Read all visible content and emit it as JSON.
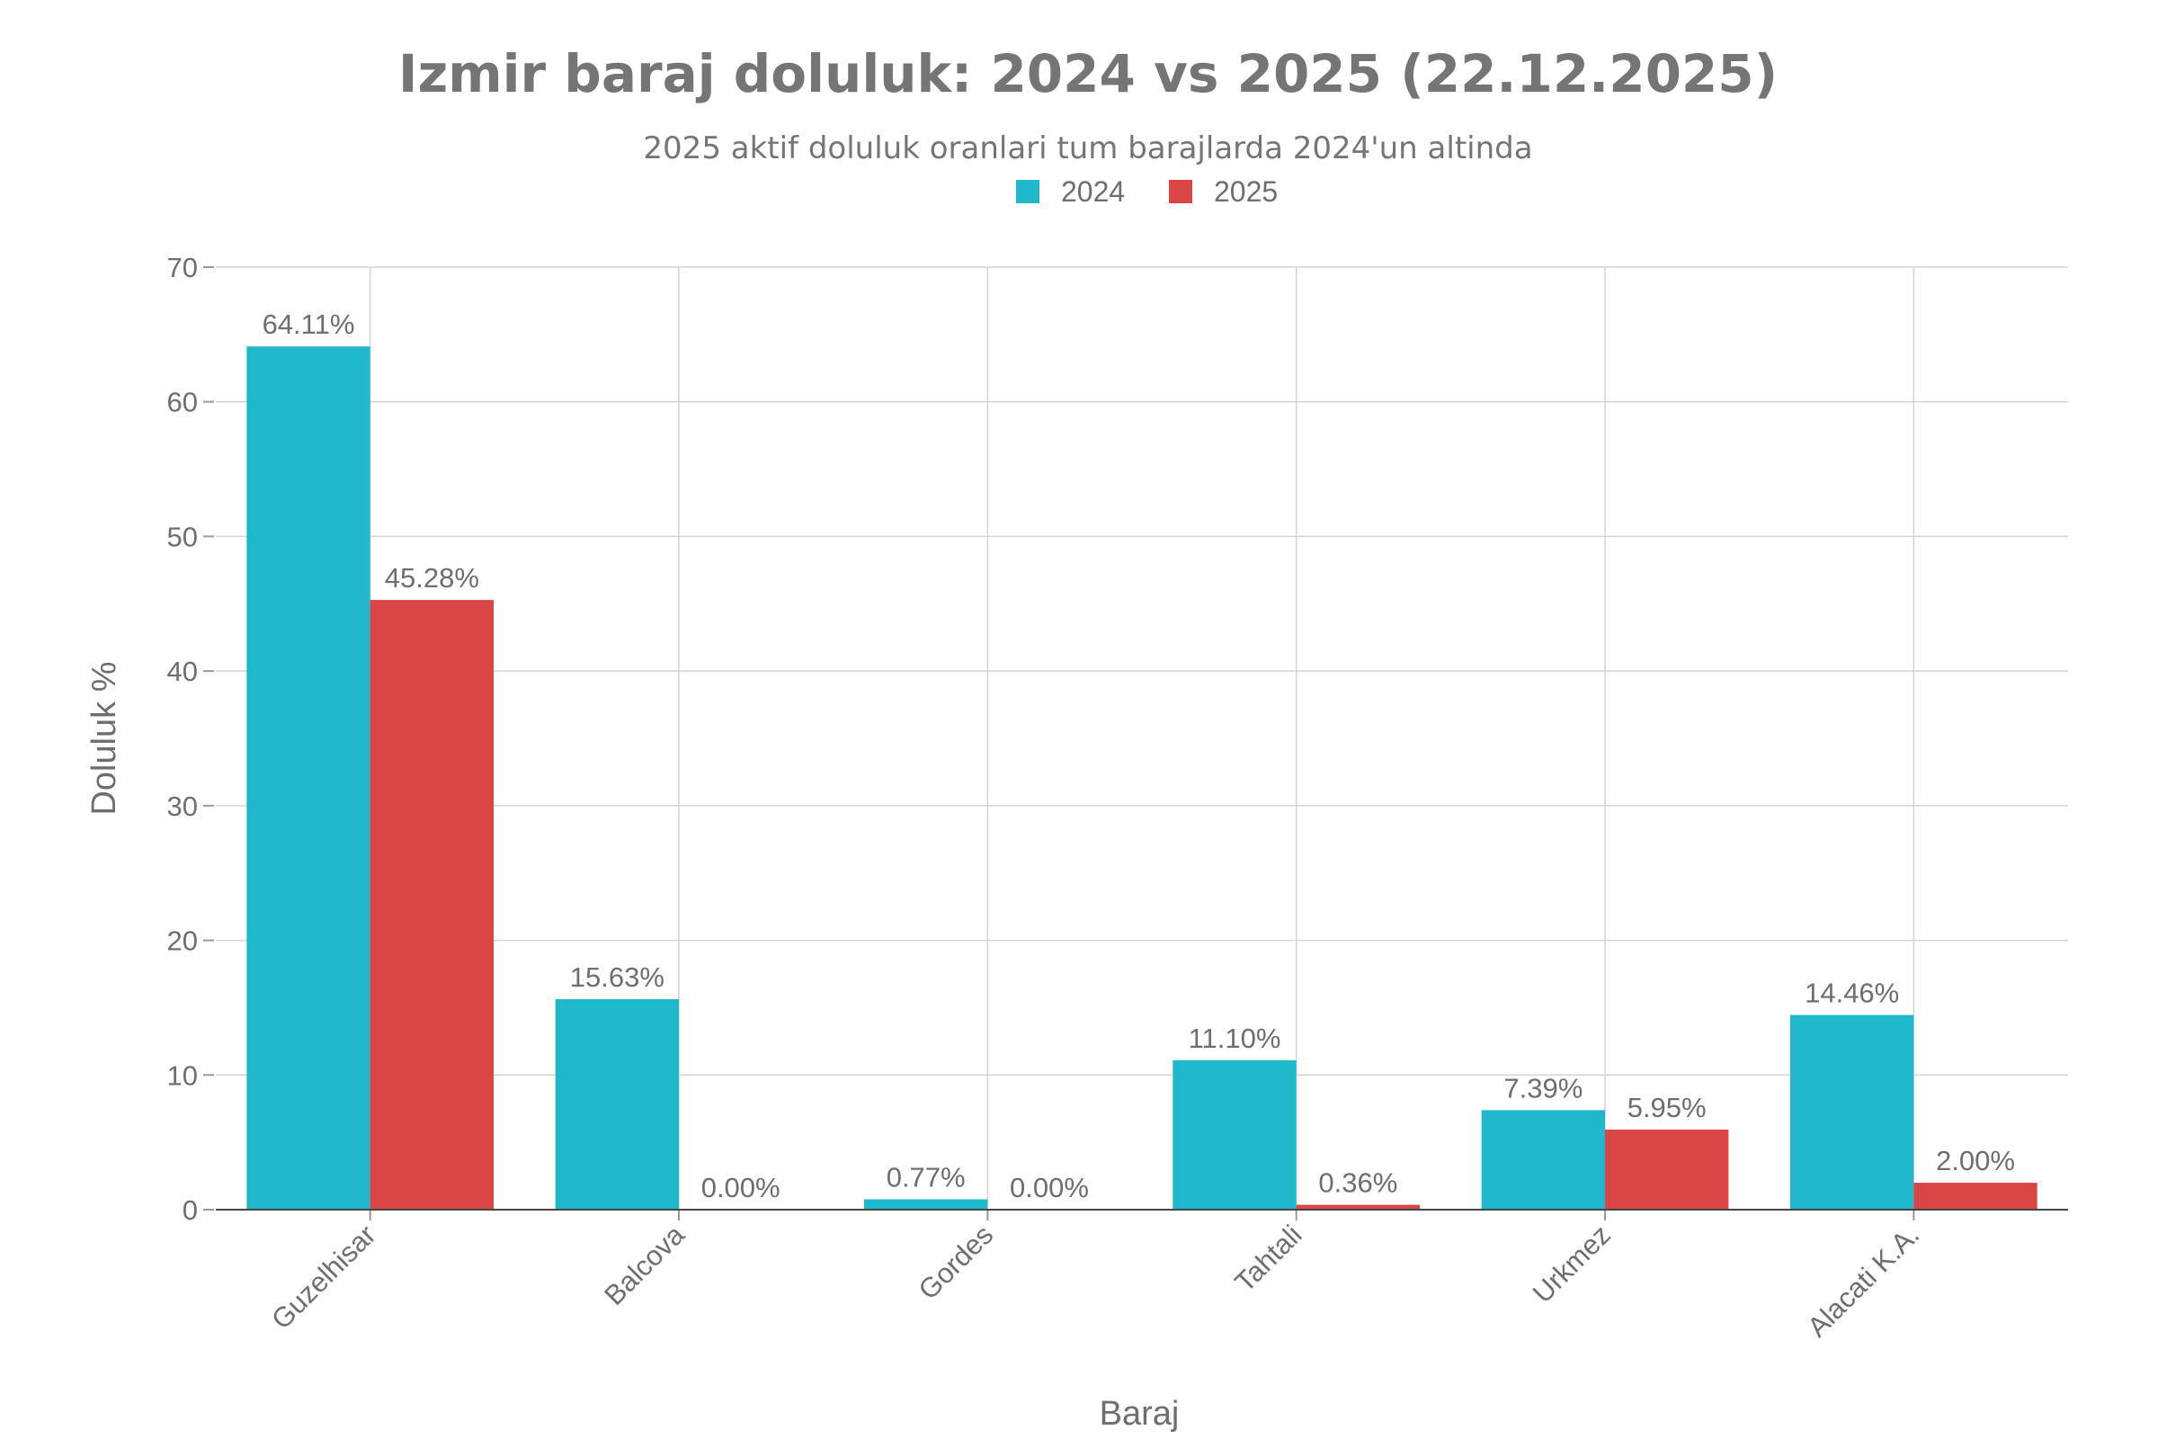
{
  "chart_data": {
    "type": "bar",
    "title": "Izmir baraj doluluk: 2024 vs 2025 (22.12.2025)",
    "subtitle": "2025 aktif doluluk oranlari tum barajlarda 2024'un altinda",
    "xlabel": "Baraj",
    "ylabel": "Doluluk %",
    "ylim": [
      0,
      70
    ],
    "yticks": [
      0,
      10,
      20,
      30,
      40,
      50,
      60,
      70
    ],
    "grid": true,
    "legend_position": "top-center",
    "categories": [
      "Guzelhisar",
      "Balcova",
      "Gordes",
      "Tahtali",
      "Urkmez",
      "Alacati K.A."
    ],
    "series": [
      {
        "name": "2024",
        "color": "#20b8cc",
        "values": [
          64.11,
          15.63,
          0.77,
          11.1,
          7.39,
          14.46
        ],
        "labels": [
          "64.11%",
          "15.63%",
          "0.77%",
          "11.10%",
          "7.39%",
          "14.46%"
        ]
      },
      {
        "name": "2025",
        "color": "#da4646",
        "values": [
          45.28,
          0.0,
          0.0,
          0.36,
          5.95,
          2.0
        ],
        "labels": [
          "45.28%",
          "0.00%",
          "0.00%",
          "0.36%",
          "5.95%",
          "2.00%"
        ]
      }
    ]
  }
}
